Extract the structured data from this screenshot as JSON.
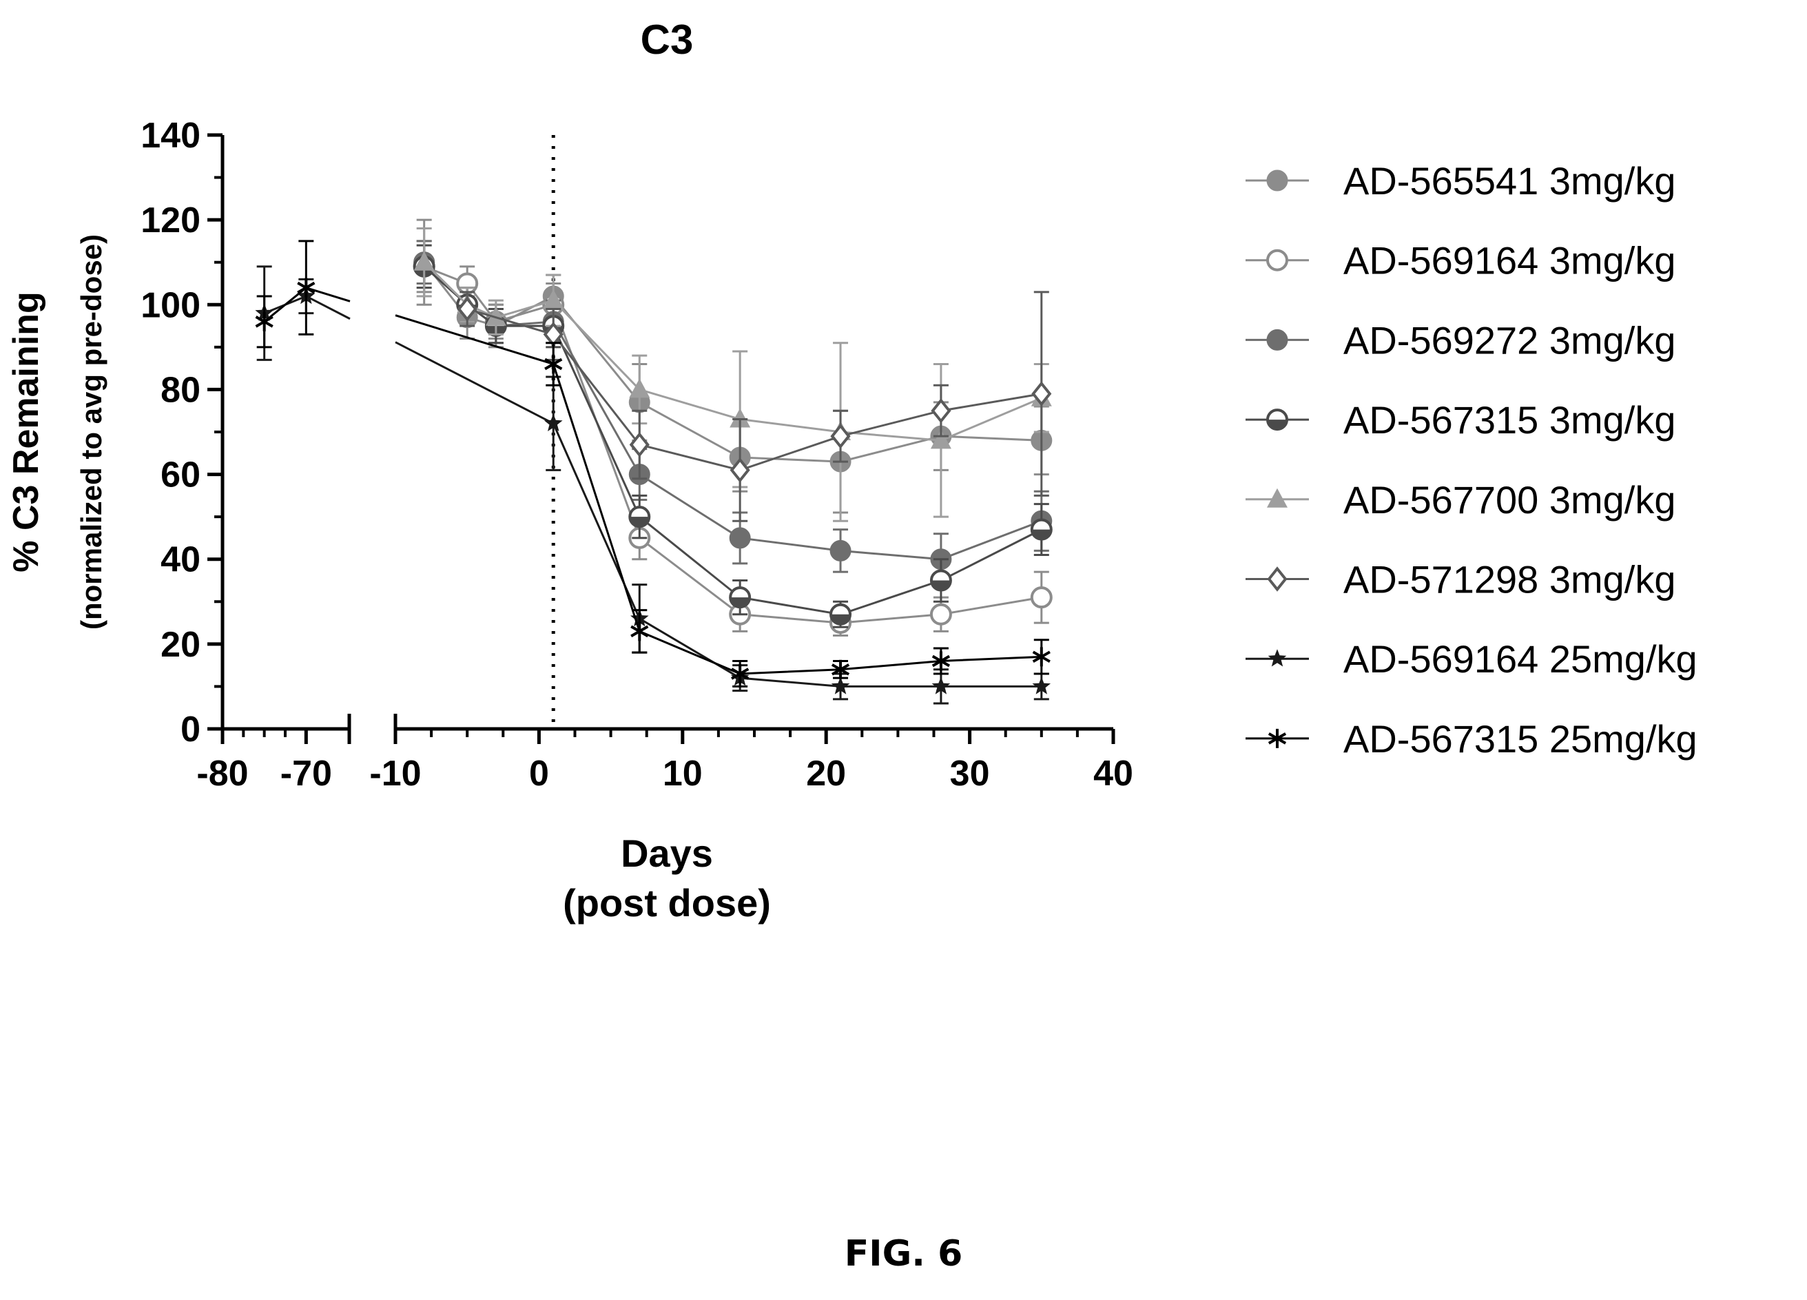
{
  "chart_data": {
    "type": "line",
    "title": "C3",
    "xlabel": [
      "Days",
      "(post dose)"
    ],
    "ylabel": [
      "% C3 Remaining",
      "(normalized to avg pre-dose)"
    ],
    "ylim": [
      0,
      140
    ],
    "y_ticks": [
      "0",
      "20",
      "40",
      "60",
      "80",
      "100",
      "120",
      "140"
    ],
    "x_segments": [
      {
        "range": [
          -80,
          -65
        ],
        "ticks": [
          "-80",
          "-70"
        ]
      },
      {
        "range": [
          -10,
          40
        ],
        "ticks": [
          "-10",
          "0",
          "10",
          "20",
          "30",
          "40"
        ]
      }
    ],
    "dose_day": 1,
    "legend_position": "right",
    "series": [
      {
        "name": "AD-565541 3mg/kg",
        "color": "#8c8c8c",
        "marker": "circle-filled",
        "x": [
          -8,
          -5,
          -3,
          1,
          7,
          14,
          21,
          28,
          35
        ],
        "y": [
          110,
          97,
          95,
          102,
          77,
          64,
          63,
          69,
          68
        ],
        "err": [
          10,
          5,
          5,
          5,
          9,
          8,
          12,
          8,
          8
        ]
      },
      {
        "name": "AD-569164 3mg/kg",
        "color": "#8c8c8c",
        "marker": "circle-open",
        "x": [
          -8,
          -5,
          -3,
          1,
          7,
          14,
          21,
          28,
          35
        ],
        "y": [
          109,
          105,
          96,
          100,
          45,
          27,
          25,
          27,
          31
        ],
        "err": [
          6,
          4,
          4,
          5,
          5,
          4,
          3,
          4,
          6
        ]
      },
      {
        "name": "AD-569272 3mg/kg",
        "color": "#6e6e6e",
        "marker": "circle-filled",
        "x": [
          -8,
          -5,
          -3,
          1,
          7,
          14,
          21,
          28,
          35
        ],
        "y": [
          110,
          100,
          95,
          96,
          60,
          45,
          42,
          40,
          49
        ],
        "err": [
          5,
          4,
          4,
          5,
          6,
          6,
          5,
          6,
          7
        ]
      },
      {
        "name": "AD-567315 3mg/kg",
        "color": "#4a4a4a",
        "marker": "circle-half",
        "x": [
          -8,
          -5,
          -3,
          1,
          7,
          14,
          21,
          28,
          35
        ],
        "y": [
          109,
          100,
          95,
          95,
          50,
          31,
          27,
          35,
          47
        ],
        "err": [
          5,
          4,
          4,
          5,
          5,
          4,
          3,
          5,
          6
        ]
      },
      {
        "name": "AD-567700 3mg/kg",
        "color": "#9e9e9e",
        "marker": "triangle-filled",
        "x": [
          -8,
          -5,
          -3,
          1,
          7,
          14,
          21,
          28,
          35
        ],
        "y": [
          110,
          100,
          97,
          101,
          80,
          73,
          70,
          68,
          78
        ],
        "err": [
          8,
          4,
          4,
          6,
          8,
          16,
          21,
          18,
          8
        ]
      },
      {
        "name": "AD-571298 3mg/kg",
        "color": "#5a5a5a",
        "marker": "diamond-open",
        "x": [
          -5,
          1,
          7,
          14,
          21,
          28,
          35
        ],
        "y": [
          99,
          93,
          67,
          61,
          69,
          75,
          79
        ],
        "err": [
          4,
          6,
          8,
          12,
          6,
          6,
          24
        ]
      },
      {
        "name": "AD-569164 25mg/kg",
        "color": "#1a1a1a",
        "marker": "star",
        "x": [
          -75,
          -70,
          1,
          7,
          14,
          21,
          28,
          35
        ],
        "y": [
          98,
          102,
          72,
          26,
          12,
          10,
          10,
          10
        ],
        "err": [
          11,
          4,
          11,
          8,
          3,
          3,
          4,
          3
        ]
      },
      {
        "name": "AD-567315 25mg/kg",
        "color": "#000000",
        "marker": "asterisk",
        "x": [
          -75,
          -70,
          1,
          7,
          14,
          21,
          28,
          35
        ],
        "y": [
          96,
          104,
          86,
          23,
          13,
          14,
          16,
          17
        ],
        "err": [
          6,
          11,
          5,
          5,
          3,
          2,
          3,
          4
        ]
      }
    ]
  },
  "figure_label": "FIG. 6"
}
